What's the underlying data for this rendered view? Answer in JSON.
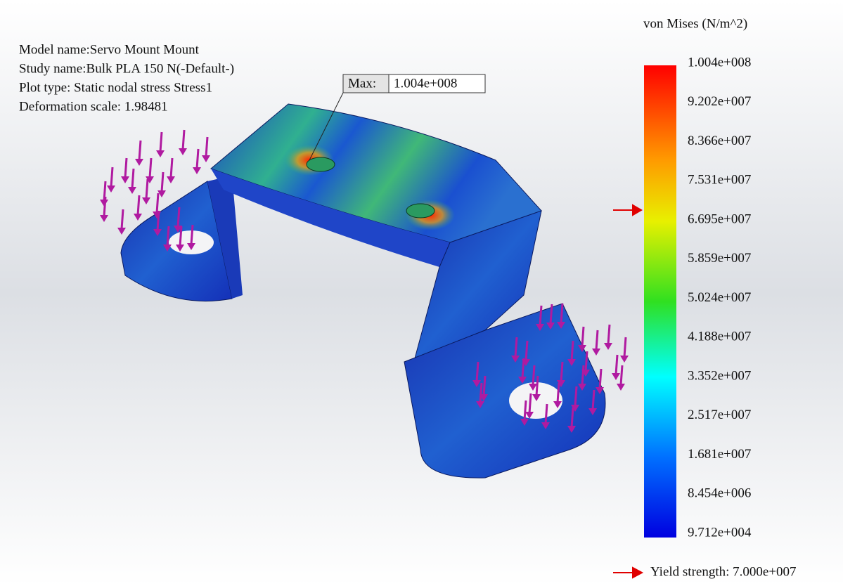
{
  "info": {
    "lines": [
      "Model name:Servo Mount Mount",
      "Study name:Bulk PLA 150 N(-Default-)",
      "Plot type: Static nodal stress Stress1",
      "Deformation scale: 1.98481"
    ]
  },
  "max_label": {
    "label": "Max:",
    "value": "1.004e+008"
  },
  "legend": {
    "title": "von Mises (N/m^2)",
    "ticks": [
      "1.004e+008",
      "9.202e+007",
      "8.366e+007",
      "7.531e+007",
      "6.695e+007",
      "5.859e+007",
      "5.024e+007",
      "4.188e+007",
      "3.352e+007",
      "2.517e+007",
      "1.681e+007",
      "8.454e+006",
      "9.712e+004"
    ]
  },
  "yield_label": "Yield strength: 7.000e+007"
}
